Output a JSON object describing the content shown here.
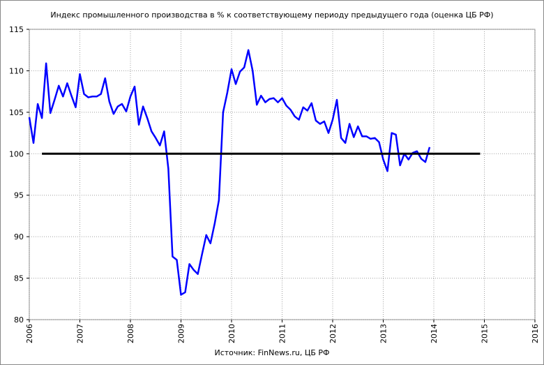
{
  "chart_data": {
    "type": "line",
    "title": "Индекс промышленного производства в % к соответствующему периоду предыдущего года (оценка ЦБ РФ)",
    "caption": "Источник: FinNews.ru, ЦБ РФ",
    "xlabel": "",
    "ylabel": "",
    "xlim": [
      2006,
      2016
    ],
    "ylim": [
      80,
      115
    ],
    "x_ticks": [
      "2006",
      "2007",
      "2008",
      "2009",
      "2010",
      "2011",
      "2012",
      "2013",
      "2014",
      "2015",
      "2016"
    ],
    "y_ticks": [
      "80",
      "85",
      "90",
      "95",
      "100",
      "105",
      "110",
      "115"
    ],
    "grid": true,
    "legend": "none",
    "series": [
      {
        "color": "#0000ff",
        "x": [
          2006.0,
          2006.083,
          2006.167,
          2006.25,
          2006.333,
          2006.417,
          2006.5,
          2006.583,
          2006.667,
          2006.75,
          2006.833,
          2006.917,
          2007.0,
          2007.083,
          2007.167,
          2007.25,
          2007.333,
          2007.417,
          2007.5,
          2007.583,
          2007.667,
          2007.75,
          2007.833,
          2007.917,
          2008.0,
          2008.083,
          2008.167,
          2008.25,
          2008.333,
          2008.417,
          2008.5,
          2008.583,
          2008.667,
          2008.75,
          2008.833,
          2008.917,
          2009.0,
          2009.083,
          2009.167,
          2009.25,
          2009.333,
          2009.417,
          2009.5,
          2009.583,
          2009.667,
          2009.75,
          2009.833,
          2009.917,
          2010.0,
          2010.083,
          2010.167,
          2010.25,
          2010.333,
          2010.417,
          2010.5,
          2010.583,
          2010.667,
          2010.75,
          2010.833,
          2010.917,
          2011.0,
          2011.083,
          2011.167,
          2011.25,
          2011.333,
          2011.417,
          2011.5,
          2011.583,
          2011.667,
          2011.75,
          2011.833,
          2011.917,
          2012.0,
          2012.083,
          2012.167,
          2012.25,
          2012.333,
          2012.417,
          2012.5,
          2012.583,
          2012.667,
          2012.75,
          2012.833,
          2012.917,
          2013.0,
          2013.083,
          2013.167,
          2013.25,
          2013.333,
          2013.417,
          2013.5,
          2013.583,
          2013.667,
          2013.75,
          2013.833,
          2013.917
        ],
        "y": [
          104.4,
          101.3,
          106.0,
          104.3,
          110.9,
          104.9,
          106.5,
          108.2,
          106.9,
          108.5,
          107.0,
          105.6,
          109.6,
          107.2,
          106.8,
          106.9,
          106.9,
          107.2,
          109.1,
          106.3,
          104.8,
          105.7,
          106.0,
          105.1,
          106.9,
          108.1,
          103.5,
          105.7,
          104.3,
          102.7,
          101.9,
          101.0,
          102.7,
          98.2,
          87.6,
          87.2,
          83.0,
          83.3,
          86.7,
          86.0,
          85.5,
          87.9,
          90.2,
          89.2,
          91.6,
          94.4,
          105.0,
          107.4,
          110.2,
          108.4,
          109.9,
          110.4,
          112.5,
          110.0,
          105.9,
          107.0,
          106.2,
          106.6,
          106.7,
          106.2,
          106.7,
          105.8,
          105.3,
          104.5,
          104.1,
          105.6,
          105.2,
          106.1,
          104.0,
          103.6,
          103.9,
          102.5,
          104.1,
          106.5,
          101.9,
          101.3,
          103.6,
          102.0,
          103.3,
          102.1,
          102.1,
          101.8,
          101.9,
          101.4,
          99.3,
          97.9,
          102.5,
          102.3,
          98.6,
          100.0,
          99.3,
          100.1,
          100.3,
          99.4,
          99.0,
          100.8
        ]
      },
      {
        "color": "#000000",
        "x": [
          2006.25,
          2014.917
        ],
        "y": [
          100,
          100
        ]
      }
    ]
  }
}
